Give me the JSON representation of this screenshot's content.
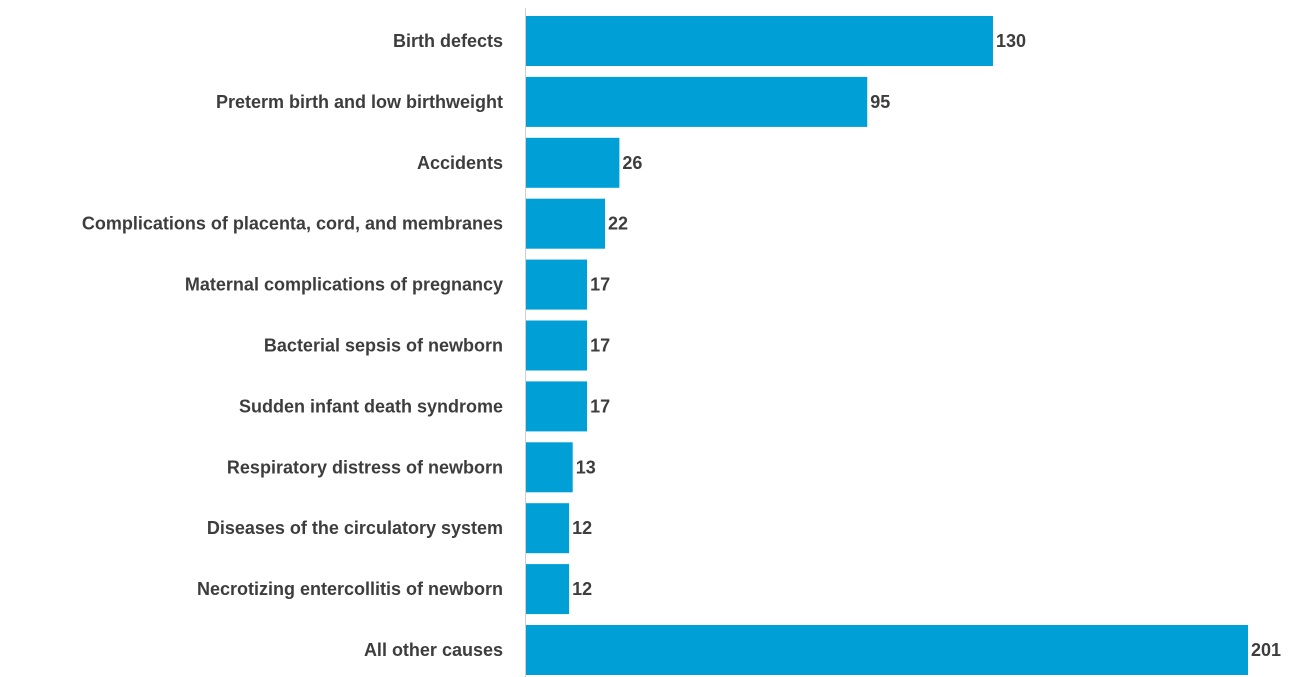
{
  "chart_data": {
    "type": "bar",
    "orientation": "horizontal",
    "categories": [
      "Birth defects",
      "Preterm birth and low birthweight",
      "Accidents",
      "Complications of placenta, cord, and membranes",
      "Maternal complications of pregnancy",
      "Bacterial sepsis of newborn",
      "Sudden infant death syndrome",
      "Respiratory distress of newborn",
      "Diseases of the circulatory system",
      "Necrotizing entercollitis of newborn",
      "All other causes"
    ],
    "values": [
      130,
      95,
      26,
      22,
      17,
      17,
      17,
      13,
      12,
      12,
      201
    ],
    "value_labels": [
      "130",
      "95",
      "26",
      "22",
      "17",
      "17",
      "17",
      "13",
      "12",
      "12",
      "201"
    ],
    "title": "",
    "xlabel": "",
    "ylabel": "",
    "xlim": [
      0,
      201
    ],
    "grid": false,
    "legend": "none",
    "bar_color": "#009fd6",
    "text_color": "#3d3d3d",
    "axis_color": "#cfcfcf"
  }
}
